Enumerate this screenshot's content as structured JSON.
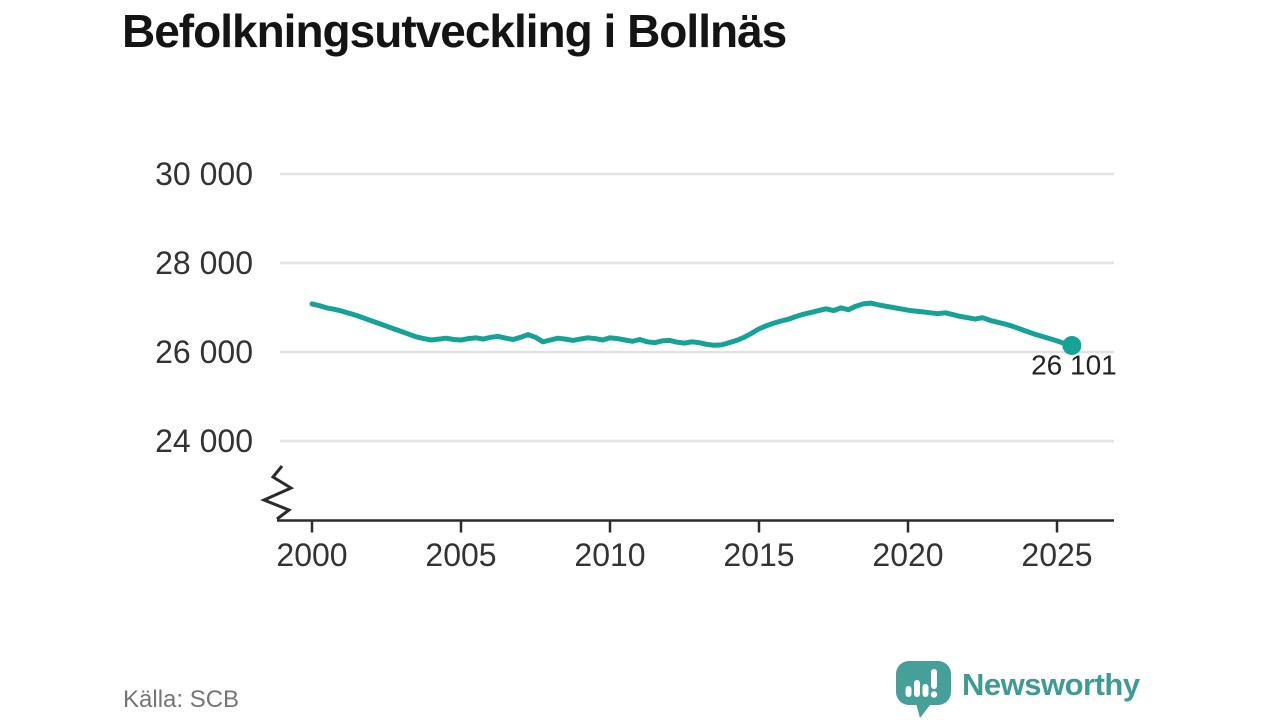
{
  "title": "Befolkningsutveckling i Bollnäs",
  "source": "Källa: SCB",
  "brand": {
    "name": "Newsworthy",
    "wordmark_color": "#3F9A94",
    "icon_color": "#469F99"
  },
  "colors": {
    "line": "#16A296",
    "grid": "#E2E2E2",
    "axis": "#2B2B2B",
    "tick_label": "#333333",
    "end_label": "#222222"
  },
  "chart_data": {
    "type": "line",
    "title": "Befolkningsutveckling i Bollnäs",
    "series_label": "Befolkning i Bollnäs",
    "xlabel": "",
    "ylabel": "",
    "grid": "horizontal",
    "legend": "none",
    "axis_break": true,
    "xlim": [
      1999,
      2027
    ],
    "ylim": [
      24000,
      30000
    ],
    "x_ticks": [
      {
        "value": 2000,
        "label": "2000"
      },
      {
        "value": 2005,
        "label": "2005"
      },
      {
        "value": 2010,
        "label": "2010"
      },
      {
        "value": 2015,
        "label": "2015"
      },
      {
        "value": 2020,
        "label": "2020"
      },
      {
        "value": 2025,
        "label": "2025"
      }
    ],
    "y_ticks": [
      {
        "value": 30000,
        "label": "30 000"
      },
      {
        "value": 28000,
        "label": "28 000"
      },
      {
        "value": 26000,
        "label": "26 000"
      },
      {
        "value": 24000,
        "label": "24 000"
      }
    ],
    "end_label": "26 101",
    "end_value": 26101,
    "x": [
      2000,
      2000.25,
      2000.5,
      2000.75,
      2001,
      2001.25,
      2001.5,
      2001.75,
      2002,
      2002.25,
      2002.5,
      2002.75,
      2003,
      2003.25,
      2003.5,
      2003.75,
      2004,
      2004.25,
      2004.5,
      2004.75,
      2005,
      2005.25,
      2005.5,
      2005.75,
      2006,
      2006.25,
      2006.5,
      2006.75,
      2007,
      2007.25,
      2007.5,
      2007.75,
      2008,
      2008.25,
      2008.5,
      2008.75,
      2009,
      2009.25,
      2009.5,
      2009.75,
      2010,
      2010.25,
      2010.5,
      2010.75,
      2011,
      2011.25,
      2011.5,
      2011.75,
      2012,
      2012.25,
      2012.5,
      2012.75,
      2013,
      2013.25,
      2013.5,
      2013.75,
      2014,
      2014.25,
      2014.5,
      2014.75,
      2015,
      2015.25,
      2015.5,
      2015.75,
      2016,
      2016.25,
      2016.5,
      2016.75,
      2017,
      2017.25,
      2017.5,
      2017.75,
      2018,
      2018.25,
      2018.5,
      2018.75,
      2019,
      2019.25,
      2019.5,
      2019.75,
      2020,
      2020.25,
      2020.5,
      2020.75,
      2021,
      2021.25,
      2021.5,
      2021.75,
      2022,
      2022.25,
      2022.5,
      2022.75,
      2023,
      2023.25,
      2023.5,
      2023.75,
      2024,
      2024.25,
      2024.5,
      2024.75,
      2025,
      2025.25,
      2025.5
    ],
    "y": [
      27080,
      27040,
      26990,
      26960,
      26920,
      26870,
      26820,
      26760,
      26700,
      26640,
      26580,
      26520,
      26460,
      26400,
      26340,
      26300,
      26270,
      26290,
      26310,
      26280,
      26270,
      26300,
      26320,
      26290,
      26330,
      26350,
      26310,
      26280,
      26330,
      26390,
      26330,
      26230,
      26270,
      26310,
      26290,
      26260,
      26290,
      26320,
      26300,
      26270,
      26320,
      26300,
      26270,
      26240,
      26280,
      26230,
      26210,
      26250,
      26260,
      26220,
      26200,
      26230,
      26210,
      26170,
      26150,
      26160,
      26210,
      26260,
      26330,
      26420,
      26520,
      26590,
      26650,
      26700,
      26740,
      26800,
      26850,
      26890,
      26930,
      26970,
      26930,
      26990,
      26950,
      27030,
      27080,
      27100,
      27060,
      27030,
      27000,
      26970,
      26940,
      26920,
      26900,
      26880,
      26860,
      26880,
      26840,
      26800,
      26770,
      26740,
      26770,
      26710,
      26670,
      26630,
      26580,
      26520,
      26460,
      26400,
      26350,
      26300,
      26250,
      26190,
      26101
    ]
  }
}
